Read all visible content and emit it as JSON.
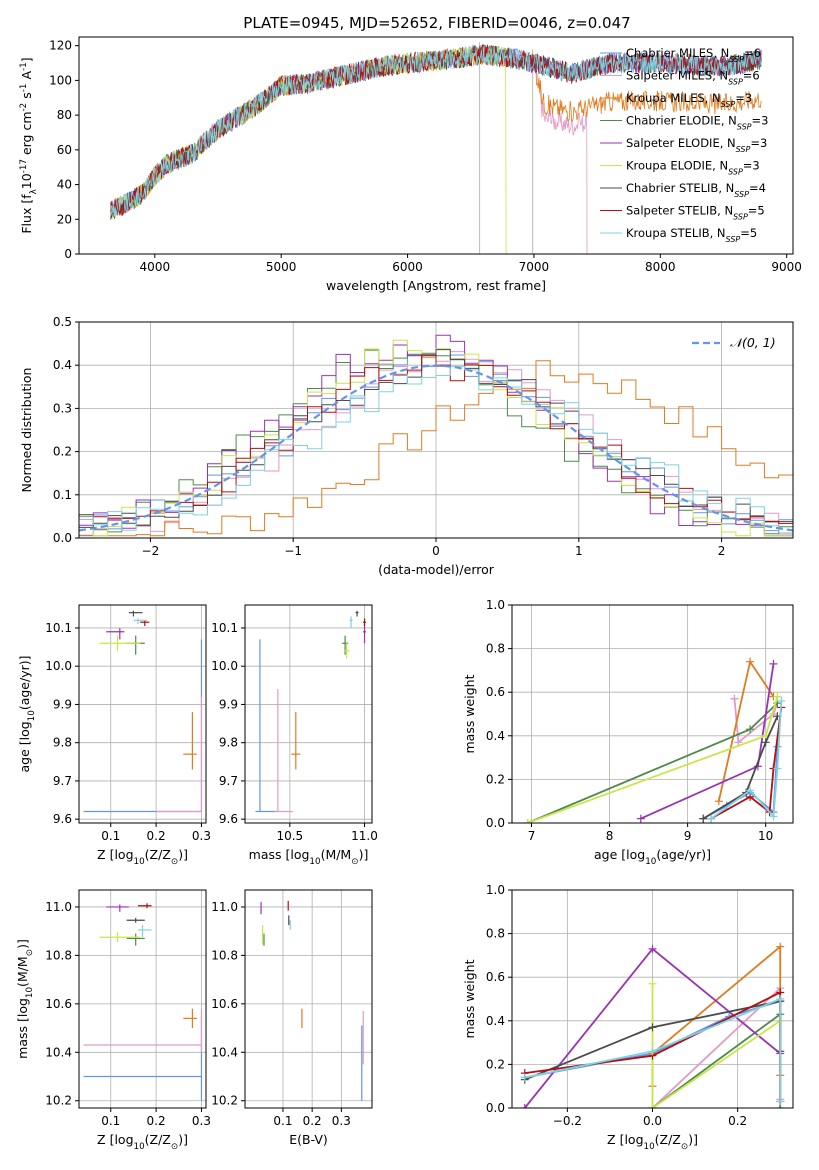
{
  "figure_title": "PLATE=0945, MJD=52652, FIBERID=0046, z=0.047",
  "model_colors": [
    "#6495ed",
    "#e29ac6",
    "#e07b1e",
    "#4f8a4a",
    "#9a32b8",
    "#c8e64a",
    "#4a4a4a",
    "#b40f0f",
    "#7ed3e0"
  ],
  "chart_data": [
    {
      "type": "line",
      "panel": "spectrum",
      "xlabel": "wavelength [Angstrom, rest frame]",
      "ylabel": "Flux [f$_\\lambda$10$^{-17}$ erg cm$^{-2}$ s$^{-1}$ A$^{-1}$]",
      "xlim": [
        3400,
        9050
      ],
      "ylim": [
        0,
        125
      ],
      "xticks": [
        4000,
        5000,
        6000,
        7000,
        8000,
        9000
      ],
      "yticks": [
        0,
        20,
        40,
        60,
        80,
        100,
        120
      ],
      "legend_position": "top-right",
      "legend": [
        "Chabrier MILES, N_SSP=6",
        "Salpeter MILES, N_SSP=6",
        "Kroupa MILES, N_SSP=3",
        "Chabrier ELODIE, N_SSP=3",
        "Salpeter ELODIE, N_SSP=3",
        "Kroupa ELODIE, N_SSP=3",
        "Chabrier STELIB, N_SSP=4",
        "Salpeter STELIB, N_SSP=5",
        "Kroupa STELIB, N_SSP=5"
      ],
      "continuum": {
        "x": [
          3650,
          3800,
          3900,
          4000,
          4100,
          4300,
          4500,
          4800,
          5000,
          5200,
          5500,
          5800,
          6000,
          6300,
          6600,
          6900,
          7100,
          7300,
          7600,
          8000,
          8500,
          8800
        ],
        "y": [
          25,
          30,
          35,
          45,
          52,
          58,
          72,
          85,
          97,
          98,
          103,
          108,
          110,
          112,
          115,
          112,
          108,
          104,
          110,
          110,
          108,
          112
        ]
      },
      "series_end_x": [
        8800,
        7420,
        8800,
        8800,
        8800,
        6780,
        8800,
        8800,
        8800
      ],
      "tail_offsets": [
        0,
        -30,
        -22,
        0,
        0,
        0,
        0,
        0,
        0
      ]
    },
    {
      "type": "area",
      "panel": "residual_histogram",
      "xlabel": "(data-model)/error",
      "ylabel": "Normed distribution",
      "xlim": [
        -2.5,
        2.5
      ],
      "ylim": [
        0,
        0.5
      ],
      "xticks": [
        -2,
        -1,
        0,
        1,
        2
      ],
      "yticks": [
        0.0,
        0.1,
        0.2,
        0.3,
        0.4,
        0.5
      ],
      "gaussian_label": "𝒩(0, 1)",
      "gaussian": {
        "mean": 0,
        "sigma": 1
      },
      "bin_width": 0.1,
      "bin_start": -2.5,
      "histograms": [
        {
          "center": 0.05,
          "sigma": 1.0,
          "peak": 0.41,
          "seed": 3
        },
        {
          "center": 0.1,
          "sigma": 1.0,
          "peak": 0.4,
          "seed": 5
        },
        {
          "center": 0.9,
          "sigma": 1.05,
          "peak": 0.38,
          "seed": 7
        },
        {
          "center": -0.2,
          "sigma": 0.95,
          "peak": 0.43,
          "seed": 11
        },
        {
          "center": -0.15,
          "sigma": 0.95,
          "peak": 0.45,
          "seed": 13
        },
        {
          "center": -0.1,
          "sigma": 0.95,
          "peak": 0.44,
          "seed": 17
        },
        {
          "center": 0.05,
          "sigma": 1.0,
          "peak": 0.41,
          "seed": 19
        },
        {
          "center": 0.0,
          "sigma": 1.0,
          "peak": 0.4,
          "seed": 23
        },
        {
          "center": 0.15,
          "sigma": 1.05,
          "peak": 0.38,
          "seed": 29
        }
      ]
    },
    {
      "type": "scatter",
      "panel": "age_vs_Z",
      "xlabel": "Z [log$_{10}$(Z/Z$_\\odot$)]",
      "ylabel": "age  [log$_{10}$(age/yr)]",
      "xlim": [
        0.03,
        0.31
      ],
      "ylim": [
        9.59,
        10.16
      ],
      "xticks": [
        0.1,
        0.2,
        0.3
      ],
      "yticks": [
        9.6,
        9.7,
        9.8,
        9.9,
        10.0,
        10.1
      ],
      "points": [
        {
          "x": 0.3,
          "y": 9.62,
          "xerr": [
            0.26,
            0
          ],
          "yerr": [
            0,
            0.45
          ]
        },
        {
          "x": 0.3,
          "y": 9.62,
          "xerr": [
            0.1,
            0
          ],
          "yerr": [
            0,
            0.3
          ]
        },
        {
          "x": 0.28,
          "y": 9.77,
          "xerr": [
            0.02,
            0.01
          ],
          "yerr": [
            0.04,
            0.11
          ]
        },
        {
          "x": 0.155,
          "y": 10.06,
          "xerr": [
            0.02,
            0.02
          ],
          "yerr": [
            0.03,
            0.02
          ]
        },
        {
          "x": 0.12,
          "y": 10.09,
          "xerr": [
            0.03,
            0.01
          ],
          "yerr": [
            0.02,
            0.01
          ]
        },
        {
          "x": 0.115,
          "y": 10.06,
          "xerr": [
            0.04,
            0.05
          ],
          "yerr": [
            0.02,
            0.02
          ]
        },
        {
          "x": 0.15,
          "y": 10.14,
          "xerr": [
            0.01,
            0.02
          ],
          "yerr": [
            0.01,
            0.005
          ]
        },
        {
          "x": 0.175,
          "y": 10.115,
          "xerr": [
            0.01,
            0.01
          ],
          "yerr": [
            0.01,
            0.005
          ]
        },
        {
          "x": 0.16,
          "y": 10.12,
          "xerr": [
            0.01,
            0.02
          ],
          "yerr": [
            0.01,
            0.005
          ]
        }
      ]
    },
    {
      "type": "scatter",
      "panel": "age_vs_mass",
      "xlabel": "mass [log$_{10}$(M/M$_\\odot$)]",
      "ylabel": "",
      "xlim": [
        10.2,
        11.05
      ],
      "ylim": [
        9.59,
        10.16
      ],
      "xticks": [
        10.5,
        11.0
      ],
      "yticks": [
        9.6,
        9.7,
        9.8,
        9.9,
        10.0,
        10.1
      ],
      "points": [
        {
          "x": 10.3,
          "y": 9.62,
          "xerr": [
            0.03,
            0.12
          ],
          "yerr": [
            0,
            0.45
          ]
        },
        {
          "x": 10.42,
          "y": 9.62,
          "xerr": [
            0.02,
            0.1
          ],
          "yerr": [
            0,
            0.32
          ]
        },
        {
          "x": 10.54,
          "y": 9.77,
          "xerr": [
            0.03,
            0.03
          ],
          "yerr": [
            0.04,
            0.11
          ]
        },
        {
          "x": 10.87,
          "y": 10.06,
          "xerr": [
            0.02,
            0.02
          ],
          "yerr": [
            0.03,
            0.02
          ]
        },
        {
          "x": 11.0,
          "y": 10.09,
          "xerr": [
            0.01,
            0.01
          ],
          "yerr": [
            0.03,
            0.02
          ]
        },
        {
          "x": 10.88,
          "y": 10.04,
          "xerr": [
            0.02,
            0.02
          ],
          "yerr": [
            0.02,
            0.02
          ]
        },
        {
          "x": 10.95,
          "y": 10.14,
          "xerr": [
            0.01,
            0.01
          ],
          "yerr": [
            0.01,
            0.005
          ]
        },
        {
          "x": 11.0,
          "y": 10.115,
          "xerr": [
            0.01,
            0.01
          ],
          "yerr": [
            0.01,
            0.01
          ]
        },
        {
          "x": 10.91,
          "y": 10.12,
          "xerr": [
            0.01,
            0.01
          ],
          "yerr": [
            0.02,
            0.01
          ]
        }
      ]
    },
    {
      "type": "line",
      "panel": "massweight_vs_age",
      "xlabel": "age  [log$_{10}$(age/yr)]",
      "ylabel": "mass weight",
      "xlim": [
        6.75,
        10.35
      ],
      "ylim": [
        0,
        1.0
      ],
      "xticks": [
        7,
        8,
        9,
        10
      ],
      "yticks": [
        0.0,
        0.2,
        0.4,
        0.6,
        0.8,
        1.0
      ],
      "series": [
        {
          "x": [
            9.2,
            9.5,
            9.8,
            10.1,
            10.15
          ],
          "y": [
            0.02,
            0.08,
            0.14,
            0.05,
            0.35
          ]
        },
        {
          "x": [
            9.6,
            9.6,
            9.65,
            10.1,
            10.15
          ],
          "y": [
            0.57,
            0.57,
            0.37,
            0.5,
            0.55
          ]
        },
        {
          "x": [
            9.4,
            9.8,
            10.1
          ],
          "y": [
            0.1,
            0.74,
            0.58
          ]
        },
        {
          "x": [
            6.95,
            9.8,
            10.15
          ],
          "y": [
            0.0,
            0.43,
            0.55
          ]
        },
        {
          "x": [
            8.4,
            9.9,
            10.1
          ],
          "y": [
            0.02,
            0.26,
            0.73
          ]
        },
        {
          "x": [
            6.95,
            10.0,
            10.15
          ],
          "y": [
            0.0,
            0.4,
            0.58
          ]
        },
        {
          "x": [
            9.2,
            9.75,
            10.0,
            10.15
          ],
          "y": [
            0.02,
            0.14,
            0.37,
            0.49
          ]
        },
        {
          "x": [
            9.3,
            9.8,
            10.05,
            10.1,
            10.2
          ],
          "y": [
            0.02,
            0.12,
            0.05,
            0.25,
            0.53
          ]
        },
        {
          "x": [
            9.3,
            9.8,
            10.1,
            10.15,
            10.2
          ],
          "y": [
            0.02,
            0.15,
            0.03,
            0.25,
            0.56
          ]
        }
      ]
    },
    {
      "type": "scatter",
      "panel": "mass_vs_Z",
      "xlabel": "Z [log$_{10}$(Z/Z$_\\odot$)]",
      "ylabel": "mass [log$_{10}$(M/M$_\\odot$)]",
      "xlim": [
        0.03,
        0.31
      ],
      "ylim": [
        10.17,
        11.07
      ],
      "xticks": [
        0.1,
        0.2,
        0.3
      ],
      "yticks": [
        10.2,
        10.4,
        10.6,
        10.8,
        11.0
      ],
      "points": [
        {
          "x": 0.3,
          "y": 10.3,
          "xerr": [
            0.26,
            0
          ],
          "yerr": [
            0.1,
            0.25
          ]
        },
        {
          "x": 0.3,
          "y": 10.43,
          "xerr": [
            0.26,
            0
          ],
          "yerr": [
            0.03,
            0.15
          ]
        },
        {
          "x": 0.28,
          "y": 10.54,
          "xerr": [
            0.02,
            0.01
          ],
          "yerr": [
            0.04,
            0.04
          ]
        },
        {
          "x": 0.155,
          "y": 10.87,
          "xerr": [
            0.02,
            0.02
          ],
          "yerr": [
            0.03,
            0.02
          ]
        },
        {
          "x": 0.12,
          "y": 11.0,
          "xerr": [
            0.03,
            0.02
          ],
          "yerr": [
            0.02,
            0.01
          ]
        },
        {
          "x": 0.115,
          "y": 10.875,
          "xerr": [
            0.04,
            0.05
          ],
          "yerr": [
            0.02,
            0.02
          ]
        },
        {
          "x": 0.155,
          "y": 10.945,
          "xerr": [
            0.02,
            0.02
          ],
          "yerr": [
            0.01,
            0.01
          ]
        },
        {
          "x": 0.18,
          "y": 11.005,
          "xerr": [
            0.02,
            0.01
          ],
          "yerr": [
            0.01,
            0.01
          ]
        },
        {
          "x": 0.17,
          "y": 10.905,
          "xerr": [
            0.01,
            0.02
          ],
          "yerr": [
            0.03,
            0.02
          ]
        }
      ]
    },
    {
      "type": "scatter",
      "panel": "mass_vs_EBV",
      "xlabel": "E(B-V)",
      "ylabel": "",
      "xlim": [
        -0.03,
        0.405
      ],
      "ylim": [
        10.17,
        11.07
      ],
      "xticks": [
        0.1,
        0.2,
        0.3
      ],
      "yticks": [
        10.2,
        10.4,
        10.6,
        10.8,
        11.0
      ],
      "points": [
        {
          "x": 0.37,
          "y": 10.3,
          "xerr": [
            0,
            0
          ],
          "yerr": [
            0.1,
            0.21
          ]
        },
        {
          "x": 0.375,
          "y": 10.43,
          "xerr": [
            0,
            0
          ],
          "yerr": [
            0.08,
            0.14
          ]
        },
        {
          "x": 0.165,
          "y": 10.54,
          "xerr": [
            0,
            0
          ],
          "yerr": [
            0.04,
            0.04
          ]
        },
        {
          "x": 0.035,
          "y": 10.87,
          "xerr": [
            0,
            0
          ],
          "yerr": [
            0.03,
            0.02
          ]
        },
        {
          "x": 0.025,
          "y": 11.0,
          "xerr": [
            0,
            0
          ],
          "yerr": [
            0.03,
            0.02
          ]
        },
        {
          "x": 0.03,
          "y": 10.875,
          "xerr": [
            0,
            0
          ],
          "yerr": [
            0.03,
            0.05
          ]
        },
        {
          "x": 0.12,
          "y": 10.945,
          "xerr": [
            0,
            0
          ],
          "yerr": [
            0.02,
            0.02
          ]
        },
        {
          "x": 0.118,
          "y": 11.005,
          "xerr": [
            0,
            0
          ],
          "yerr": [
            0.02,
            0.02
          ]
        },
        {
          "x": 0.125,
          "y": 10.925,
          "xerr": [
            0,
            0
          ],
          "yerr": [
            0.02,
            0.02
          ]
        }
      ]
    },
    {
      "type": "line",
      "panel": "massweight_vs_Z",
      "xlabel": "Z [log$_{10}$(Z/Z$_\\odot$)]",
      "ylabel": "mass weight",
      "xlim": [
        -0.33,
        0.33
      ],
      "ylim": [
        0,
        1.0
      ],
      "xticks": [
        -0.2,
        0.0,
        0.2
      ],
      "yticks": [
        0.0,
        0.2,
        0.4,
        0.6,
        0.8,
        1.0
      ],
      "series": [
        {
          "x": [
            -0.3,
            0.0,
            0.18,
            0.3
          ],
          "y": [
            0.14,
            0.25,
            0.42,
            0.49
          ]
        },
        {
          "x": [
            0.0,
            0.3,
            0.3
          ],
          "y": [
            0.0,
            0.55,
            0.04
          ]
        },
        {
          "x": [
            0.0,
            0.0,
            0.3,
            0.3
          ],
          "y": [
            0.1,
            0.25,
            0.74,
            0.15
          ]
        },
        {
          "x": [
            0.0,
            0.3,
            0.3
          ],
          "y": [
            0.0,
            0.43,
            0.0
          ]
        },
        {
          "x": [
            -0.3,
            0.0,
            0.3
          ],
          "y": [
            0.0,
            0.73,
            0.25
          ]
        },
        {
          "x": [
            0.0,
            0.0,
            0.3
          ],
          "y": [
            0.57,
            0.0,
            0.4
          ]
        },
        {
          "x": [
            -0.3,
            0.0,
            0.3,
            0.3
          ],
          "y": [
            0.13,
            0.37,
            0.49,
            0.26
          ]
        },
        {
          "x": [
            -0.3,
            0.0,
            0.3,
            0.3
          ],
          "y": [
            0.16,
            0.24,
            0.53,
            0.03
          ]
        },
        {
          "x": [
            -0.3,
            0.0,
            0.3,
            0.3
          ],
          "y": [
            0.14,
            0.26,
            0.5,
            0.03
          ]
        }
      ]
    }
  ]
}
